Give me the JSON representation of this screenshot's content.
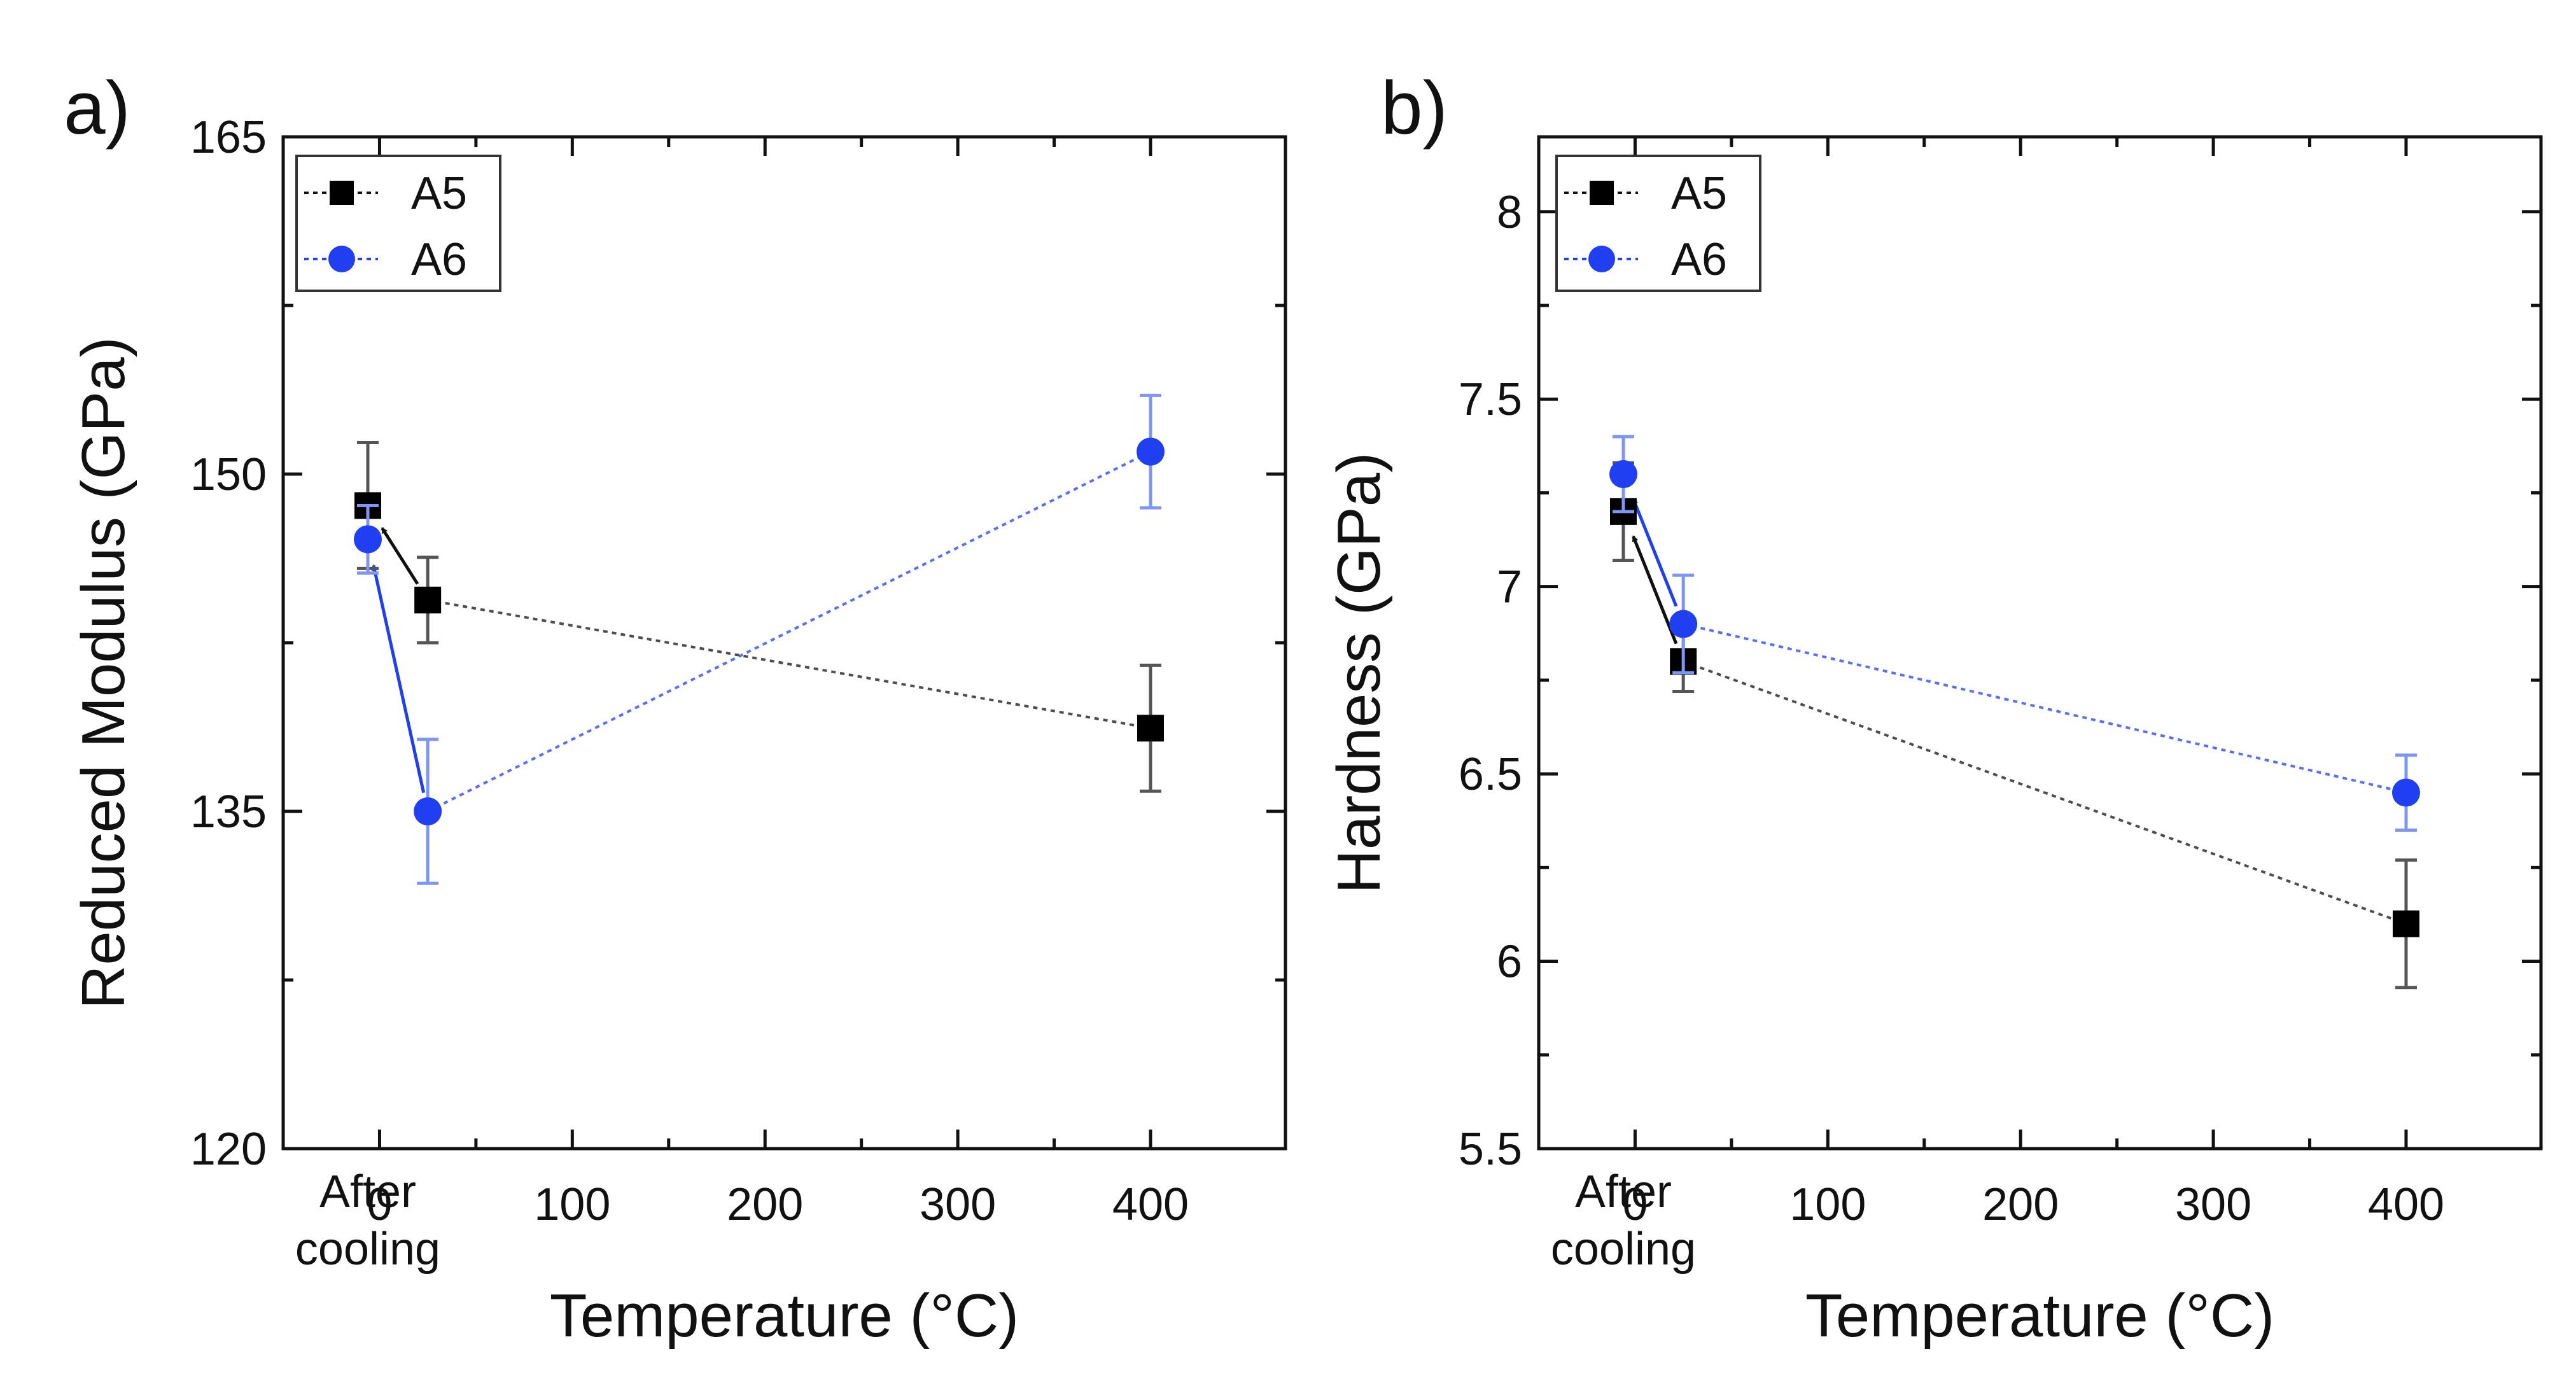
{
  "chart_data": [
    {
      "type": "scatter",
      "panel_label": "a)",
      "title": "",
      "xlabel": "Temperature (°C)",
      "ylabel": "Reduced Modulus (GPa)",
      "xlim": [
        -50,
        470
      ],
      "ylim": [
        120,
        165
      ],
      "xticks": [
        0,
        100,
        200,
        300,
        400
      ],
      "xtick_labels": [
        "0",
        "100",
        "200",
        "300",
        "400"
      ],
      "yticks": [
        120,
        135,
        150,
        165
      ],
      "ytick_labels": [
        "120",
        "135",
        "150",
        "165"
      ],
      "after_cooling_label": [
        "After",
        "cooling"
      ],
      "legend": {
        "position": "top-left",
        "entries": [
          "A5",
          "A6"
        ]
      },
      "series": [
        {
          "name": "A5",
          "color": "#111111",
          "marker": "square",
          "points": [
            {
              "x": "After cooling",
              "y": 148.6,
              "err": 2.8
            },
            {
              "x": 25,
              "y": 144.4,
              "err": 1.9
            },
            {
              "x": 400,
              "y": 138.7,
              "err": 2.8
            }
          ]
        },
        {
          "name": "A6",
          "color": "#1f3ff0",
          "marker": "circle",
          "points": [
            {
              "x": "After cooling",
              "y": 147.1,
              "err": 1.5
            },
            {
              "x": 25,
              "y": 135.0,
              "err": 3.2
            },
            {
              "x": 400,
              "y": 151.0,
              "err": 2.5
            }
          ]
        }
      ]
    },
    {
      "type": "scatter",
      "panel_label": "b)",
      "title": "",
      "xlabel": "Temperature (°C)",
      "ylabel": "Hardness (GPa)",
      "xlim": [
        -50,
        470
      ],
      "ylim": [
        5.5,
        8.2
      ],
      "xticks": [
        0,
        100,
        200,
        300,
        400
      ],
      "xtick_labels": [
        "0",
        "100",
        "200",
        "300",
        "400"
      ],
      "yticks": [
        5.5,
        6,
        6.5,
        7,
        7.5,
        8
      ],
      "ytick_labels": [
        "5.5",
        "6",
        "6.5",
        "7",
        "7.5",
        "8"
      ],
      "after_cooling_label": [
        "After",
        "cooling"
      ],
      "legend": {
        "position": "top-left",
        "entries": [
          "A5",
          "A6"
        ]
      },
      "series": [
        {
          "name": "A5",
          "color": "#111111",
          "marker": "square",
          "points": [
            {
              "x": "After cooling",
              "y": 7.2,
              "err": 0.13
            },
            {
              "x": 25,
              "y": 6.8,
              "err": 0.08
            },
            {
              "x": 400,
              "y": 6.1,
              "err": 0.17
            }
          ]
        },
        {
          "name": "A6",
          "color": "#1f3ff0",
          "marker": "circle",
          "points": [
            {
              "x": "After cooling",
              "y": 7.3,
              "err": 0.1
            },
            {
              "x": 25,
              "y": 6.9,
              "err": 0.13
            },
            {
              "x": 400,
              "y": 6.45,
              "err": 0.1
            }
          ]
        }
      ]
    }
  ]
}
